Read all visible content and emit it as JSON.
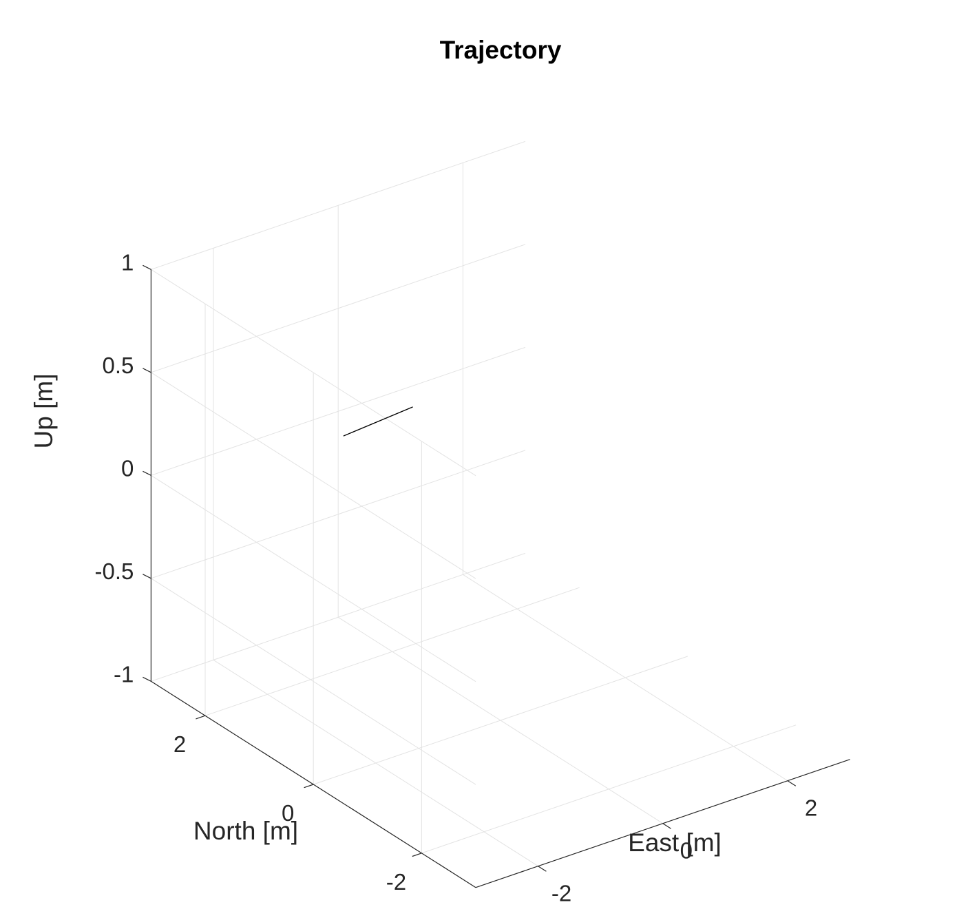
{
  "chart_data": {
    "type": "line",
    "projection": "3d",
    "title": "Trajectory",
    "xlabel": "East [m]",
    "ylabel": "North [m]",
    "zlabel": "Up [m]",
    "xlim": [
      -3,
      3
    ],
    "ylim": [
      -3,
      3
    ],
    "zlim": [
      -1,
      1
    ],
    "xticks": [
      -2,
      0,
      2
    ],
    "yticks": [
      -2,
      0,
      2
    ],
    "zticks": [
      -1,
      -0.5,
      0,
      0.5,
      1
    ],
    "xtick_labels": [
      "-2",
      "0",
      "2"
    ],
    "ytick_labels": [
      "-2",
      "0",
      "2"
    ],
    "ztick_labels": [
      "-1",
      "-0.5",
      "0",
      "0.5",
      "1"
    ],
    "grid": true,
    "series": [
      {
        "x": [
          0.85,
          -0.35
        ],
        "y": [
          2.6,
          2.5
        ],
        "z": [
          0,
          0
        ]
      }
    ]
  },
  "colors": {
    "axis": "#262626",
    "grid": "#e3e3e3",
    "line": "#000000"
  }
}
